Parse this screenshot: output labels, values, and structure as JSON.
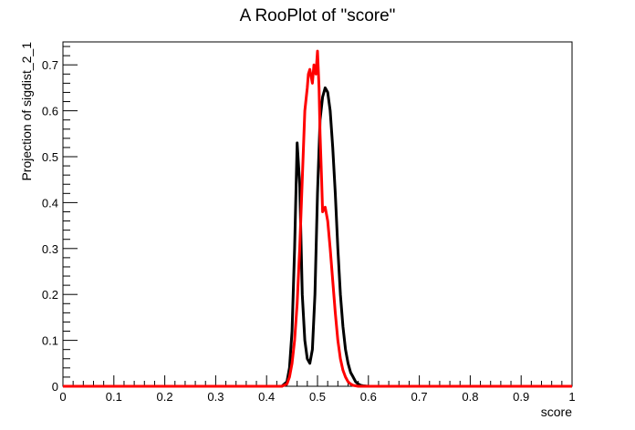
{
  "chart_data": {
    "type": "line",
    "title": "A RooPlot of \"score\"",
    "xlabel": "score",
    "ylabel": "Projection of sigdist_2_1",
    "xlim": [
      0,
      1
    ],
    "ylim": [
      0,
      0.75
    ],
    "xticks": [
      "0",
      "0.1",
      "0.2",
      "0.3",
      "0.4",
      "0.5",
      "0.6",
      "0.7",
      "0.8",
      "0.9",
      "1"
    ],
    "yticks": [
      "0",
      "0.1",
      "0.2",
      "0.3",
      "0.4",
      "0.5",
      "0.6",
      "0.7"
    ],
    "grid": false,
    "legend": "none",
    "series": [
      {
        "color": "#000000",
        "x": [
          0,
          0.43,
          0.44,
          0.445,
          0.45,
          0.455,
          0.46,
          0.465,
          0.47,
          0.475,
          0.48,
          0.485,
          0.49,
          0.495,
          0.5,
          0.505,
          0.51,
          0.515,
          0.52,
          0.525,
          0.53,
          0.535,
          0.54,
          0.545,
          0.55,
          0.555,
          0.56,
          0.565,
          0.57,
          0.575,
          0.58,
          0.585,
          0.59,
          0.6,
          0.61,
          1
        ],
        "y": [
          0,
          0,
          0.01,
          0.04,
          0.12,
          0.3,
          0.53,
          0.44,
          0.2,
          0.1,
          0.06,
          0.05,
          0.08,
          0.2,
          0.42,
          0.58,
          0.63,
          0.65,
          0.64,
          0.6,
          0.52,
          0.42,
          0.3,
          0.2,
          0.13,
          0.08,
          0.05,
          0.03,
          0.02,
          0.01,
          0.005,
          0.002,
          0.001,
          0,
          0,
          0
        ]
      },
      {
        "color": "#ff0000",
        "x": [
          0,
          0.43,
          0.44,
          0.445,
          0.45,
          0.455,
          0.46,
          0.465,
          0.47,
          0.475,
          0.48,
          0.482,
          0.485,
          0.49,
          0.493,
          0.497,
          0.5,
          0.503,
          0.505,
          0.508,
          0.51,
          0.515,
          0.52,
          0.525,
          0.53,
          0.535,
          0.54,
          0.545,
          0.55,
          0.555,
          0.56,
          0.565,
          0.57,
          0.575,
          0.58,
          0.59,
          1
        ],
        "y": [
          0,
          0,
          0.005,
          0.02,
          0.05,
          0.1,
          0.18,
          0.3,
          0.45,
          0.6,
          0.65,
          0.68,
          0.69,
          0.66,
          0.7,
          0.68,
          0.73,
          0.65,
          0.55,
          0.45,
          0.38,
          0.39,
          0.36,
          0.3,
          0.23,
          0.16,
          0.1,
          0.06,
          0.035,
          0.02,
          0.01,
          0.005,
          0.002,
          0.001,
          0,
          0,
          0
        ]
      }
    ]
  }
}
